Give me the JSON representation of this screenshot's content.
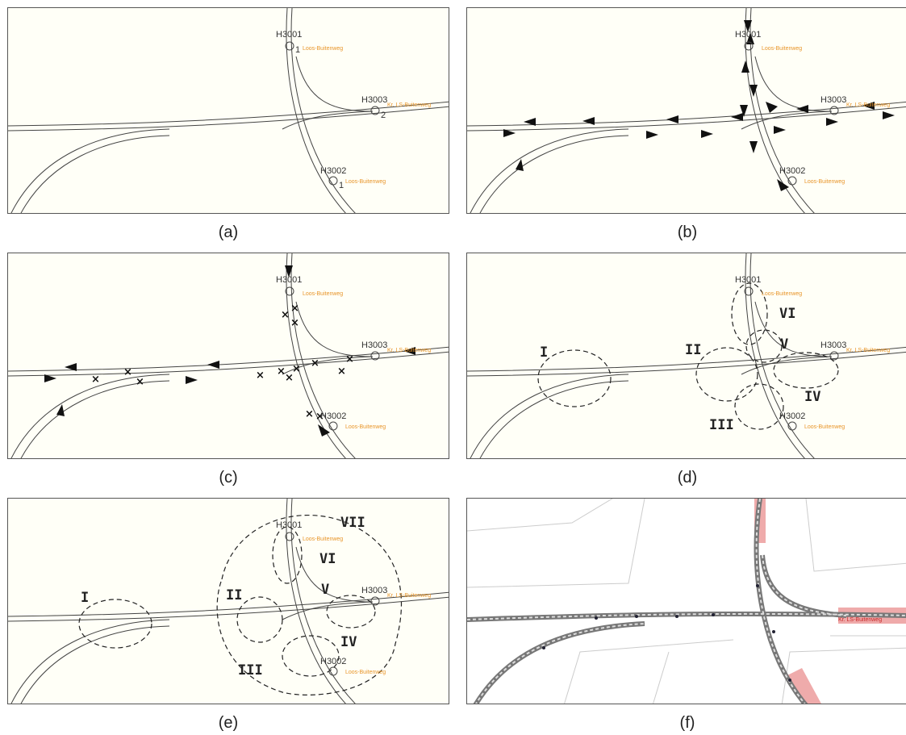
{
  "captions": [
    "(a)",
    "(b)",
    "(c)",
    "(d)",
    "(e)",
    "(f)"
  ],
  "stops": [
    {
      "code": "H3001",
      "platform": "1",
      "street": "Loos-Buitenweg"
    },
    {
      "code": "H3003",
      "platform": "2",
      "street": "Kr. LS-Buitenweg"
    },
    {
      "code": "H3002",
      "platform": "1",
      "street": "Loos-Buitenweg"
    }
  ],
  "conflict_marker": "×",
  "region_labels_d": [
    "I",
    "II",
    "III",
    "IV",
    "V",
    "VI"
  ],
  "region_labels_e": [
    "I",
    "II",
    "III",
    "IV",
    "V",
    "VI",
    "VII"
  ],
  "panel_f": {
    "stop_label": "Kr. LS-Buitenweg"
  },
  "colors": {
    "background": "#fffff7",
    "track": "#444444",
    "stop_label": "#e8952a",
    "highlight": "#e57373"
  }
}
